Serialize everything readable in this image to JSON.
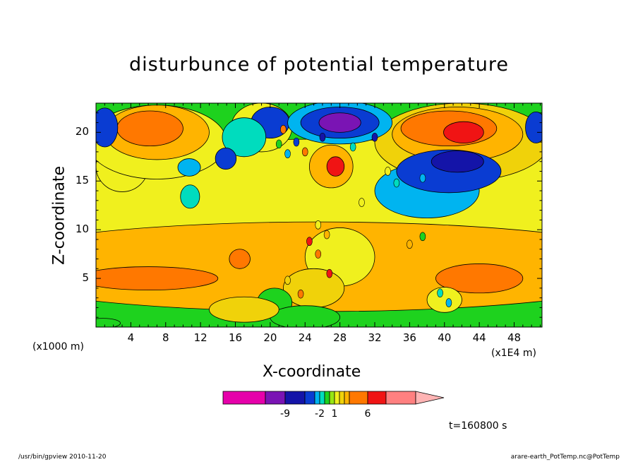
{
  "chart_data": {
    "type": "heatmap",
    "title": "disturbunce of potential temperature",
    "xlabel": "X-coordinate",
    "ylabel": "Z-coordinate",
    "x_unit_label": "(x1000 m)",
    "x_scale_label": "(x1E4 m)",
    "x_ticks": [
      "4",
      "8",
      "12",
      "16",
      "20",
      "24",
      "28",
      "32",
      "36",
      "40",
      "44",
      "48"
    ],
    "y_ticks": [
      "5",
      "10",
      "15",
      "20"
    ],
    "xlim": [
      0,
      51.2
    ],
    "ylim": [
      0,
      23
    ],
    "levels": [
      -12,
      -9,
      -6,
      -3,
      -2,
      -1,
      0,
      1,
      2,
      3,
      4,
      6,
      8,
      10,
      12
    ],
    "level_labels": [
      "-9",
      "-2",
      "1",
      "6"
    ],
    "colors": [
      "#e600aa",
      "#7a14b4",
      "#1414a8",
      "#0a3cd2",
      "#00b4f0",
      "#00dcbe",
      "#1ed21e",
      "#96e614",
      "#f0f01e",
      "#f0d20a",
      "#ffb400",
      "#ff7800",
      "#f01414",
      "#ff8080",
      "#ffb4b4"
    ],
    "time_label": "t=160800 s"
  },
  "footer": {
    "left": "/usr/bin/gpview   2010-11-20",
    "right": "arare-earth_PotTemp.nc@PotTemp"
  }
}
